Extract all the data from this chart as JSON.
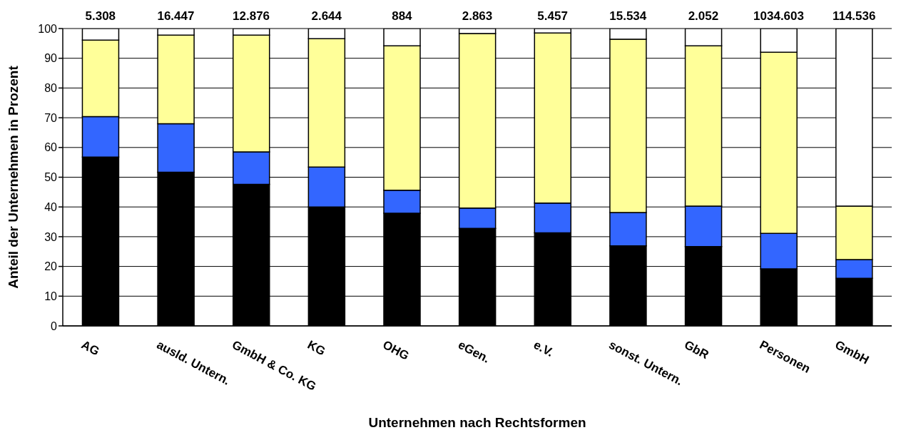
{
  "chart_data": {
    "type": "bar",
    "stacked": true,
    "xlabel": "Unternehmen nach Rechtsformen",
    "ylabel": "Anteil der Unternehmen in Prozent",
    "categories": [
      "AG",
      "ausld. Untern.",
      "GmbH & Co. KG",
      "KG",
      "OHG",
      "eGen.",
      "e.V.",
      "sonst. Untern.",
      "GbR",
      "Personen",
      "GmbH"
    ],
    "series": [
      {
        "color": "#000000",
        "values": [
          56.8,
          51.7,
          47.6,
          40,
          37.9,
          32.8,
          31.3,
          26.9,
          26.7,
          19.2,
          16
        ]
      },
      {
        "color": "#3366ff",
        "values": [
          13.6,
          16.3,
          10.9,
          13.4,
          7.7,
          6.8,
          10,
          11.2,
          13.6,
          11.9,
          6.3
        ]
      },
      {
        "color": "#ffff99",
        "values": [
          25.7,
          29.8,
          39.3,
          43.2,
          48.6,
          58.7,
          57.2,
          58.3,
          53.9,
          60.9,
          18
        ]
      },
      {
        "color": "#ffffff",
        "values": [
          3.9,
          2.2,
          2.2,
          3.4,
          5.8,
          1.7,
          1.5,
          3.6,
          5.8,
          8,
          59.7
        ]
      }
    ],
    "ylim": [
      0,
      100
    ],
    "yticks": [
      0,
      10,
      20,
      30,
      40,
      50,
      60,
      70,
      80,
      90,
      100
    ],
    "grid": "y",
    "legend": false,
    "annotations": [
      {
        "text": "5.308",
        "x": "AG",
        "y": 100
      },
      {
        "text": "16.447",
        "x": "ausld. Untern.",
        "y": 100
      },
      {
        "text": "12.876",
        "x": "GmbH & Co. KG",
        "y": 100
      },
      {
        "text": "2.644",
        "x": "KG",
        "y": 100
      },
      {
        "text": "884",
        "x": "OHG",
        "y": 100
      },
      {
        "text": "2.863",
        "x": "eGen.",
        "y": 100
      },
      {
        "text": "5.457",
        "x": "e.V.",
        "y": 100
      },
      {
        "text": "15.534",
        "x": "sonst. Untern.",
        "y": 100
      },
      {
        "text": "2.052",
        "x": "GbR",
        "y": 100
      },
      {
        "text": "1034.603",
        "x": "Personen",
        "y": 100
      },
      {
        "text": "114.536",
        "x": "GmbH",
        "y": 100
      }
    ]
  }
}
